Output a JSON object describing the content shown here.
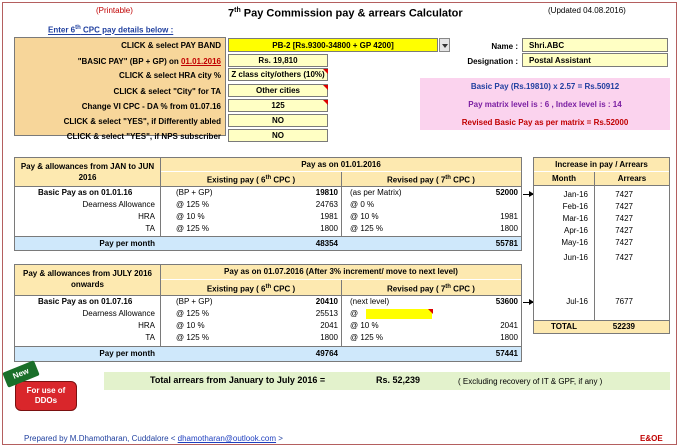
{
  "header": {
    "printable": "(Printable)",
    "title_pre": "7",
    "title_sup": "th",
    "title_post": " Pay Commission pay & arrears Calculator",
    "updated": "(Updated 04.08.2016)"
  },
  "inputs": {
    "heading_pre": "Enter 6",
    "heading_sup": "th",
    "heading_post": " CPC pay details below :",
    "pay_band_label": "CLICK & select PAY BAND",
    "pay_band_value": "PB-2 [Rs.9300-34800 + GP 4200]",
    "basic_pay_label_pre": "\"BASIC PAY\" (BP + GP) on ",
    "basic_pay_label_date": "01.01.2016",
    "basic_pay_value": "Rs. 19,810",
    "hra_label": "CLICK & select HRA city %",
    "hra_value": "Z class city/others (10%)",
    "city_label": "CLICK & select \"City\" for TA",
    "city_value": "Other cities",
    "da_label": "Change VI CPC - DA % from 01.07.16",
    "da_value": "125",
    "diff_abled_label": "CLICK & select \"YES\", if  Differently abled",
    "diff_abled_value": "NO",
    "nps_label": "CLICK & select \"YES\", if  NPS subscriber",
    "nps_value": "NO"
  },
  "person": {
    "name_label": "Name :",
    "name_value": "Shri.ABC",
    "designation_label": "Designation :",
    "designation_value": "Postal Assistant"
  },
  "summary": {
    "basic_formula": "Basic Pay (Rs.19810) x 2.57 = Rs.50912",
    "matrix_level": "Pay matrix level is : 6 ,   Index level is : 14",
    "revised_basic": "Revised Basic Pay as per matrix = Rs.52000"
  },
  "table1": {
    "left_head": "Pay & allowances from JAN to JUN 2016",
    "title": "Pay as on 01.01.2016",
    "existing_head_pre": "Existing pay ( 6",
    "existing_head_sup": "th",
    "existing_head_post": " CPC )",
    "revised_head_pre": "Revised pay ( 7",
    "revised_head_sup": "th",
    "revised_head_post": " CPC )",
    "rows": [
      {
        "label": "Basic Pay  as on 01.01.16",
        "ex_note": "(BP + GP)",
        "ex_val": "19810",
        "rv_note": "(as per Matrix)",
        "rv_val": "52000"
      },
      {
        "label": "Dearness Allowance",
        "ex_note": "@ 125 %",
        "ex_val": "24763",
        "rv_note": "@ 0 %",
        "rv_val": ""
      },
      {
        "label": "HRA",
        "ex_note": "@ 10 %",
        "ex_val": "1981",
        "rv_note": "@ 10 %",
        "rv_val": "1981"
      },
      {
        "label": "TA",
        "ex_note": "@ 125 %",
        "ex_val": "1800",
        "rv_note": "@ 125 %",
        "rv_val": "1800"
      }
    ],
    "total_label": "Pay per month",
    "total_existing": "48354",
    "total_revised": "55781"
  },
  "table2": {
    "left_head": "Pay & allowances from JULY 2016 onwards",
    "title": "Pay as on 01.07.2016 (After 3% increment/ move to next level)",
    "existing_head_pre": "Existing pay ( 6",
    "existing_head_sup": "th",
    "existing_head_post": " CPC )",
    "revised_head_pre": "Revised pay ( 7",
    "revised_head_sup": "th",
    "revised_head_post": " CPC )",
    "rows": [
      {
        "label": "Basic Pay as on 01.07.16",
        "ex_note": "(BP + GP)",
        "ex_val": "20410",
        "rv_note": "(next level)",
        "rv_val": "53600"
      },
      {
        "label": "Dearness Allowance",
        "ex_note": "@ 125 %",
        "ex_val": "25513",
        "rv_note": "@",
        "rv_val": ""
      },
      {
        "label": "HRA",
        "ex_note": "@ 10 %",
        "ex_val": "2041",
        "rv_note": "@ 10 %",
        "rv_val": "2041"
      },
      {
        "label": "TA",
        "ex_note": "@ 125 %",
        "ex_val": "1800",
        "rv_note": "@ 125 %",
        "rv_val": "1800"
      }
    ],
    "total_label": "Pay per month",
    "total_existing": "49764",
    "total_revised": "57441"
  },
  "arrears": {
    "title": "Increase in pay / Arrears",
    "col_month": "Month",
    "col_arrears": "Arrears",
    "rows": [
      {
        "month": "Jan-16",
        "value": "7427"
      },
      {
        "month": "Feb-16",
        "value": "7427"
      },
      {
        "month": "Mar-16",
        "value": "7427"
      },
      {
        "month": "Apr-16",
        "value": "7427"
      },
      {
        "month": "May-16",
        "value": "7427"
      },
      {
        "month": "Jun-16",
        "value": "7427"
      },
      {
        "month": "Jul-16",
        "value": "7677"
      }
    ],
    "total_label": "TOTAL",
    "total_value": "52239"
  },
  "total_arrears": {
    "label": "Total arrears from January to July 2016 =",
    "value": "Rs. 52,239",
    "note": "( Excluding recovery of IT & GPF, if any )"
  },
  "badge": {
    "new": "New",
    "ddo": "For use of DDOs"
  },
  "footer": {
    "prepared": "Prepared by M.Dhamotharan, Cuddalore < ",
    "email": "dhamotharan@outlook.com",
    "prepared_end": " >",
    "eoe": "E&OE"
  },
  "colors": {
    "title_red": "#c00000",
    "blue_text": "#1f3f9f",
    "purple_text": "#7b1fa2",
    "yellow": "#ffff00",
    "green_badge": "#1a6f2a",
    "red_button": "#d9262b"
  }
}
